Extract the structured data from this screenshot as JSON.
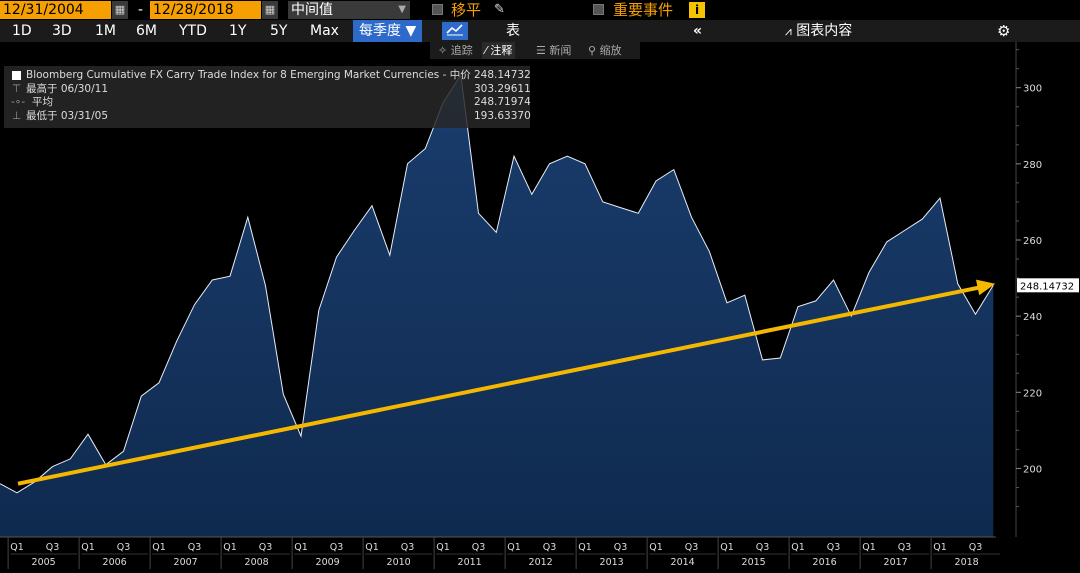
{
  "toolbar": {
    "start_date": "12/31/2004",
    "end_date": "12/28/2018",
    "date_separator": "-",
    "field_select": "中间值",
    "moving_avg_label": "移平",
    "events_label": "重要事件",
    "info_icon": "i"
  },
  "nav": {
    "periods": [
      "1D",
      "3D",
      "1M",
      "6M",
      "YTD",
      "1Y",
      "5Y",
      "Max"
    ],
    "frequency": "每季度 ▼",
    "table_label": "表",
    "collapse_icon": "«",
    "chart_content_label": "图表内容",
    "settings_icon": "gear-icon"
  },
  "subnav": {
    "track": "追踪",
    "annotate": "注释",
    "news": "新闻",
    "zoom": "缩放"
  },
  "legend": {
    "series_name": "Bloomberg Cumulative FX Carry Trade Index for 8 Emerging Market Currencies - 中价",
    "series_value": "248.14732",
    "high_label": "最高于 06/30/11",
    "high_value": "303.29611",
    "avg_label": "平均",
    "avg_value": "248.71974",
    "low_label": "最低于 03/31/05",
    "low_value": "193.63370"
  },
  "chart_data": {
    "type": "area",
    "title": "",
    "ylim": [
      182,
      312
    ],
    "yticks": [
      200,
      220,
      240,
      260,
      280,
      300
    ],
    "last_value_label": "248.14732",
    "colors": {
      "area_fill": "#0f2a4f",
      "line": "#e8eef7",
      "trend": "#f5b800",
      "last_label_bg": "#ffffff"
    },
    "grid": false,
    "x_years": [
      "2005",
      "2006",
      "2007",
      "2008",
      "2009",
      "2010",
      "2011",
      "2012",
      "2013",
      "2014",
      "2015",
      "2016",
      "2017",
      "2018"
    ],
    "quarter_labels": [
      "Q1",
      "Q3"
    ],
    "x": [
      "2004-Q4",
      "2005-Q1",
      "2005-Q2",
      "2005-Q3",
      "2005-Q4",
      "2006-Q1",
      "2006-Q2",
      "2006-Q3",
      "2006-Q4",
      "2007-Q1",
      "2007-Q2",
      "2007-Q3",
      "2007-Q4",
      "2008-Q1",
      "2008-Q2",
      "2008-Q3",
      "2008-Q4",
      "2009-Q1",
      "2009-Q2",
      "2009-Q3",
      "2009-Q4",
      "2010-Q1",
      "2010-Q2",
      "2010-Q3",
      "2010-Q4",
      "2011-Q1",
      "2011-Q2",
      "2011-Q3",
      "2011-Q4",
      "2012-Q1",
      "2012-Q2",
      "2012-Q3",
      "2012-Q4",
      "2013-Q1",
      "2013-Q2",
      "2013-Q3",
      "2013-Q4",
      "2014-Q1",
      "2014-Q2",
      "2014-Q3",
      "2014-Q4",
      "2015-Q1",
      "2015-Q2",
      "2015-Q3",
      "2015-Q4",
      "2016-Q1",
      "2016-Q2",
      "2016-Q3",
      "2016-Q4",
      "2017-Q1",
      "2017-Q2",
      "2017-Q3",
      "2017-Q4",
      "2018-Q1",
      "2018-Q2",
      "2018-Q3",
      "2018-Q4"
    ],
    "series": [
      {
        "values": [
          196.0,
          193.6,
          196.5,
          200.5,
          202.5,
          209.0,
          201.0,
          204.5,
          219.0,
          222.5,
          233.5,
          243.0,
          249.5,
          250.5,
          266.0,
          248.0,
          219.5,
          208.5,
          241.5,
          255.5,
          262.5,
          269.0,
          256.0,
          280.0,
          284.0,
          296.0,
          303.3,
          267.0,
          262.0,
          282.0,
          272.0,
          280.0,
          282.0,
          280.0,
          270.0,
          268.5,
          267.0,
          275.5,
          278.5,
          266.0,
          257.0,
          243.5,
          245.5,
          228.5,
          229.0,
          242.5,
          244.0,
          249.5,
          240.0,
          251.5,
          259.5,
          262.5,
          265.5,
          271.0,
          248.5,
          240.5,
          248.1
        ]
      }
    ],
    "trend_line": {
      "start": [
        "2004-Q4",
        196.0
      ],
      "end": [
        "2018-Q4",
        248.5
      ]
    }
  }
}
